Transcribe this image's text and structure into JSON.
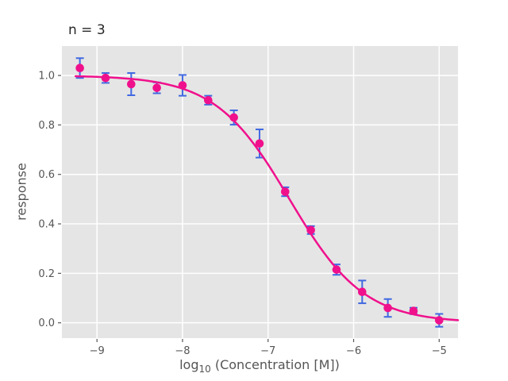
{
  "chart_data": {
    "type": "scatter",
    "title": "n = 3",
    "xlabel": "log10 (Concentration [M])",
    "xlabel_parts": [
      "log",
      "10",
      " (Concentration [M])"
    ],
    "ylabel": "response",
    "x": [
      -9.2,
      -8.9,
      -8.6,
      -8.3,
      -8.0,
      -7.7,
      -7.4,
      -7.1,
      -6.8,
      -6.5,
      -6.2,
      -5.9,
      -5.6,
      -5.3,
      -5.0
    ],
    "y": [
      1.03,
      0.99,
      0.965,
      0.95,
      0.96,
      0.9,
      0.83,
      0.725,
      0.53,
      0.375,
      0.215,
      0.125,
      0.06,
      0.048,
      0.01
    ],
    "yerr": [
      0.04,
      0.02,
      0.045,
      0.022,
      0.042,
      0.018,
      0.029,
      0.057,
      0.018,
      0.016,
      0.021,
      0.046,
      0.036,
      0.013,
      0.026
    ],
    "fit_curve": {
      "model": "hill",
      "top": 1.0,
      "bottom": 0.0,
      "log_ec50": -6.75,
      "hill_slope": 1.0,
      "x_start": -9.25,
      "x_end": -4.78
    },
    "xlim": [
      -9.41,
      -4.78
    ],
    "ylim": [
      -0.062,
      1.119
    ],
    "xticks": {
      "values": [
        -9,
        -8,
        -7,
        -6,
        -5
      ],
      "labels": [
        "−9",
        "−8",
        "−7",
        "−6",
        "−5"
      ]
    },
    "yticks": {
      "values": [
        0.0,
        0.2,
        0.4,
        0.6,
        0.8,
        1.0
      ],
      "labels": [
        "0.0",
        "0.2",
        "0.4",
        "0.6",
        "0.8",
        "1.0"
      ]
    },
    "grid": true,
    "legend": "none",
    "colors": {
      "marker": "#F0108C",
      "fit_line": "#F0108C",
      "error_bar": "#4169E1",
      "plot_background": "#E5E5E5",
      "grid_line": "#FFFFFF",
      "tick_text": "#555555",
      "title_text": "#262626",
      "figure_background": "#FFFFFF"
    }
  }
}
